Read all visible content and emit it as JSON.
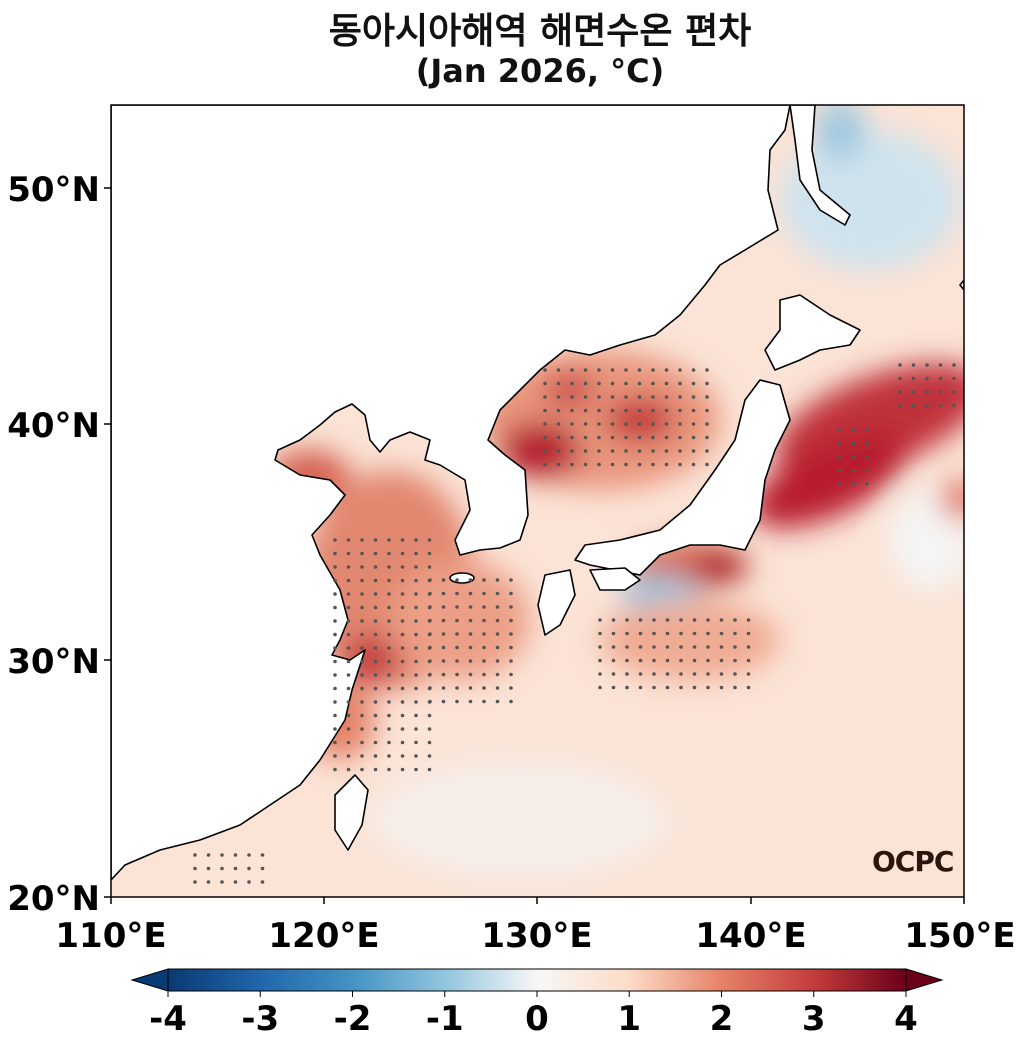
{
  "title": {
    "line1": "동아시아해역 해면수온 편차",
    "line2": "(Jan 2026, °C)"
  },
  "map": {
    "lon_range": [
      110,
      150
    ],
    "lat_range": [
      20,
      53.5
    ],
    "lat_ticks": [
      "20°N",
      "30°N",
      "40°N",
      "50°N"
    ],
    "lon_ticks": [
      "110°E",
      "120°E",
      "130°E",
      "140°E",
      "150°E"
    ],
    "land_color": "#ffffff",
    "coast_color": "#000000"
  },
  "colorbar": {
    "ticks": [
      "-4",
      "-3",
      "-2",
      "-1",
      "0",
      "1",
      "2",
      "3",
      "4"
    ],
    "range": [
      -4,
      4
    ],
    "colors": {
      "-4": "#0a3a73",
      "-3": "#2166ac",
      "-2": "#4393c3",
      "-1": "#92c5de",
      "0": "#f7f7f7",
      "1": "#fddbc7",
      "2": "#e58267",
      "3": "#c43c3c",
      "4": "#6b0019"
    }
  },
  "watermark": "OCPC"
}
